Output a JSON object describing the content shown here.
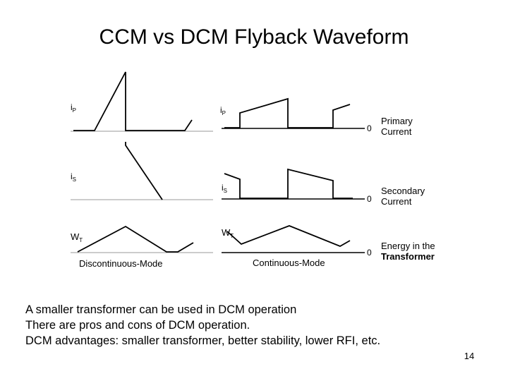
{
  "slide": {
    "title": "CCM vs DCM Flyback Waveform",
    "page_number": "14",
    "bullets": [
      "A smaller transformer can be used in DCM operation",
      "There are pros and cons of DCM operation.",
      "DCM advantages: smaller transformer, better stability, lower RFI, etc."
    ]
  },
  "figure": {
    "dcm": {
      "ip_label": "i",
      "ip_sub": "P",
      "is_label": "i",
      "is_sub": "S",
      "w_label": "W",
      "w_sub": "T",
      "caption": "Discontinuous-Mode"
    },
    "ccm": {
      "ip_label": "i",
      "ip_sub": "P",
      "is_label": "i",
      "is_sub": "S",
      "w_label": "W",
      "w_sub": "T",
      "caption": "Continuous-Mode"
    },
    "zero_label": "0",
    "row_labels": {
      "primary_1": "Primary",
      "primary_2": "Current",
      "secondary_1": "Secondary",
      "secondary_2": "Current",
      "energy_1": "Energy in the",
      "energy_2": "Transformer"
    }
  }
}
